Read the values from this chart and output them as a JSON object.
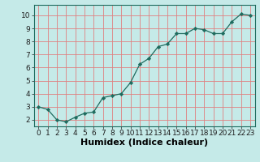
{
  "x": [
    0,
    1,
    2,
    3,
    4,
    5,
    6,
    7,
    8,
    9,
    10,
    11,
    12,
    13,
    14,
    15,
    16,
    17,
    18,
    19,
    20,
    21,
    22,
    23
  ],
  "y": [
    3.0,
    2.8,
    2.0,
    1.85,
    2.2,
    2.5,
    2.6,
    3.7,
    3.85,
    4.0,
    4.85,
    6.25,
    6.7,
    7.6,
    7.8,
    8.6,
    8.6,
    9.0,
    8.9,
    8.6,
    8.6,
    9.5,
    10.1,
    10.0
  ],
  "xlabel": "Humidex (Indice chaleur)",
  "xlim": [
    -0.5,
    23.5
  ],
  "ylim": [
    1.5,
    10.8
  ],
  "bg_color": "#c5eae8",
  "line_color": "#1e6b5e",
  "marker_color": "#1e6b5e",
  "grid_color": "#e08080",
  "yticks": [
    2,
    3,
    4,
    5,
    6,
    7,
    8,
    9,
    10
  ],
  "xticks": [
    0,
    1,
    2,
    3,
    4,
    5,
    6,
    7,
    8,
    9,
    10,
    11,
    12,
    13,
    14,
    15,
    16,
    17,
    18,
    19,
    20,
    21,
    22,
    23
  ],
  "tick_fontsize": 6.5,
  "xlabel_fontsize": 8.0
}
